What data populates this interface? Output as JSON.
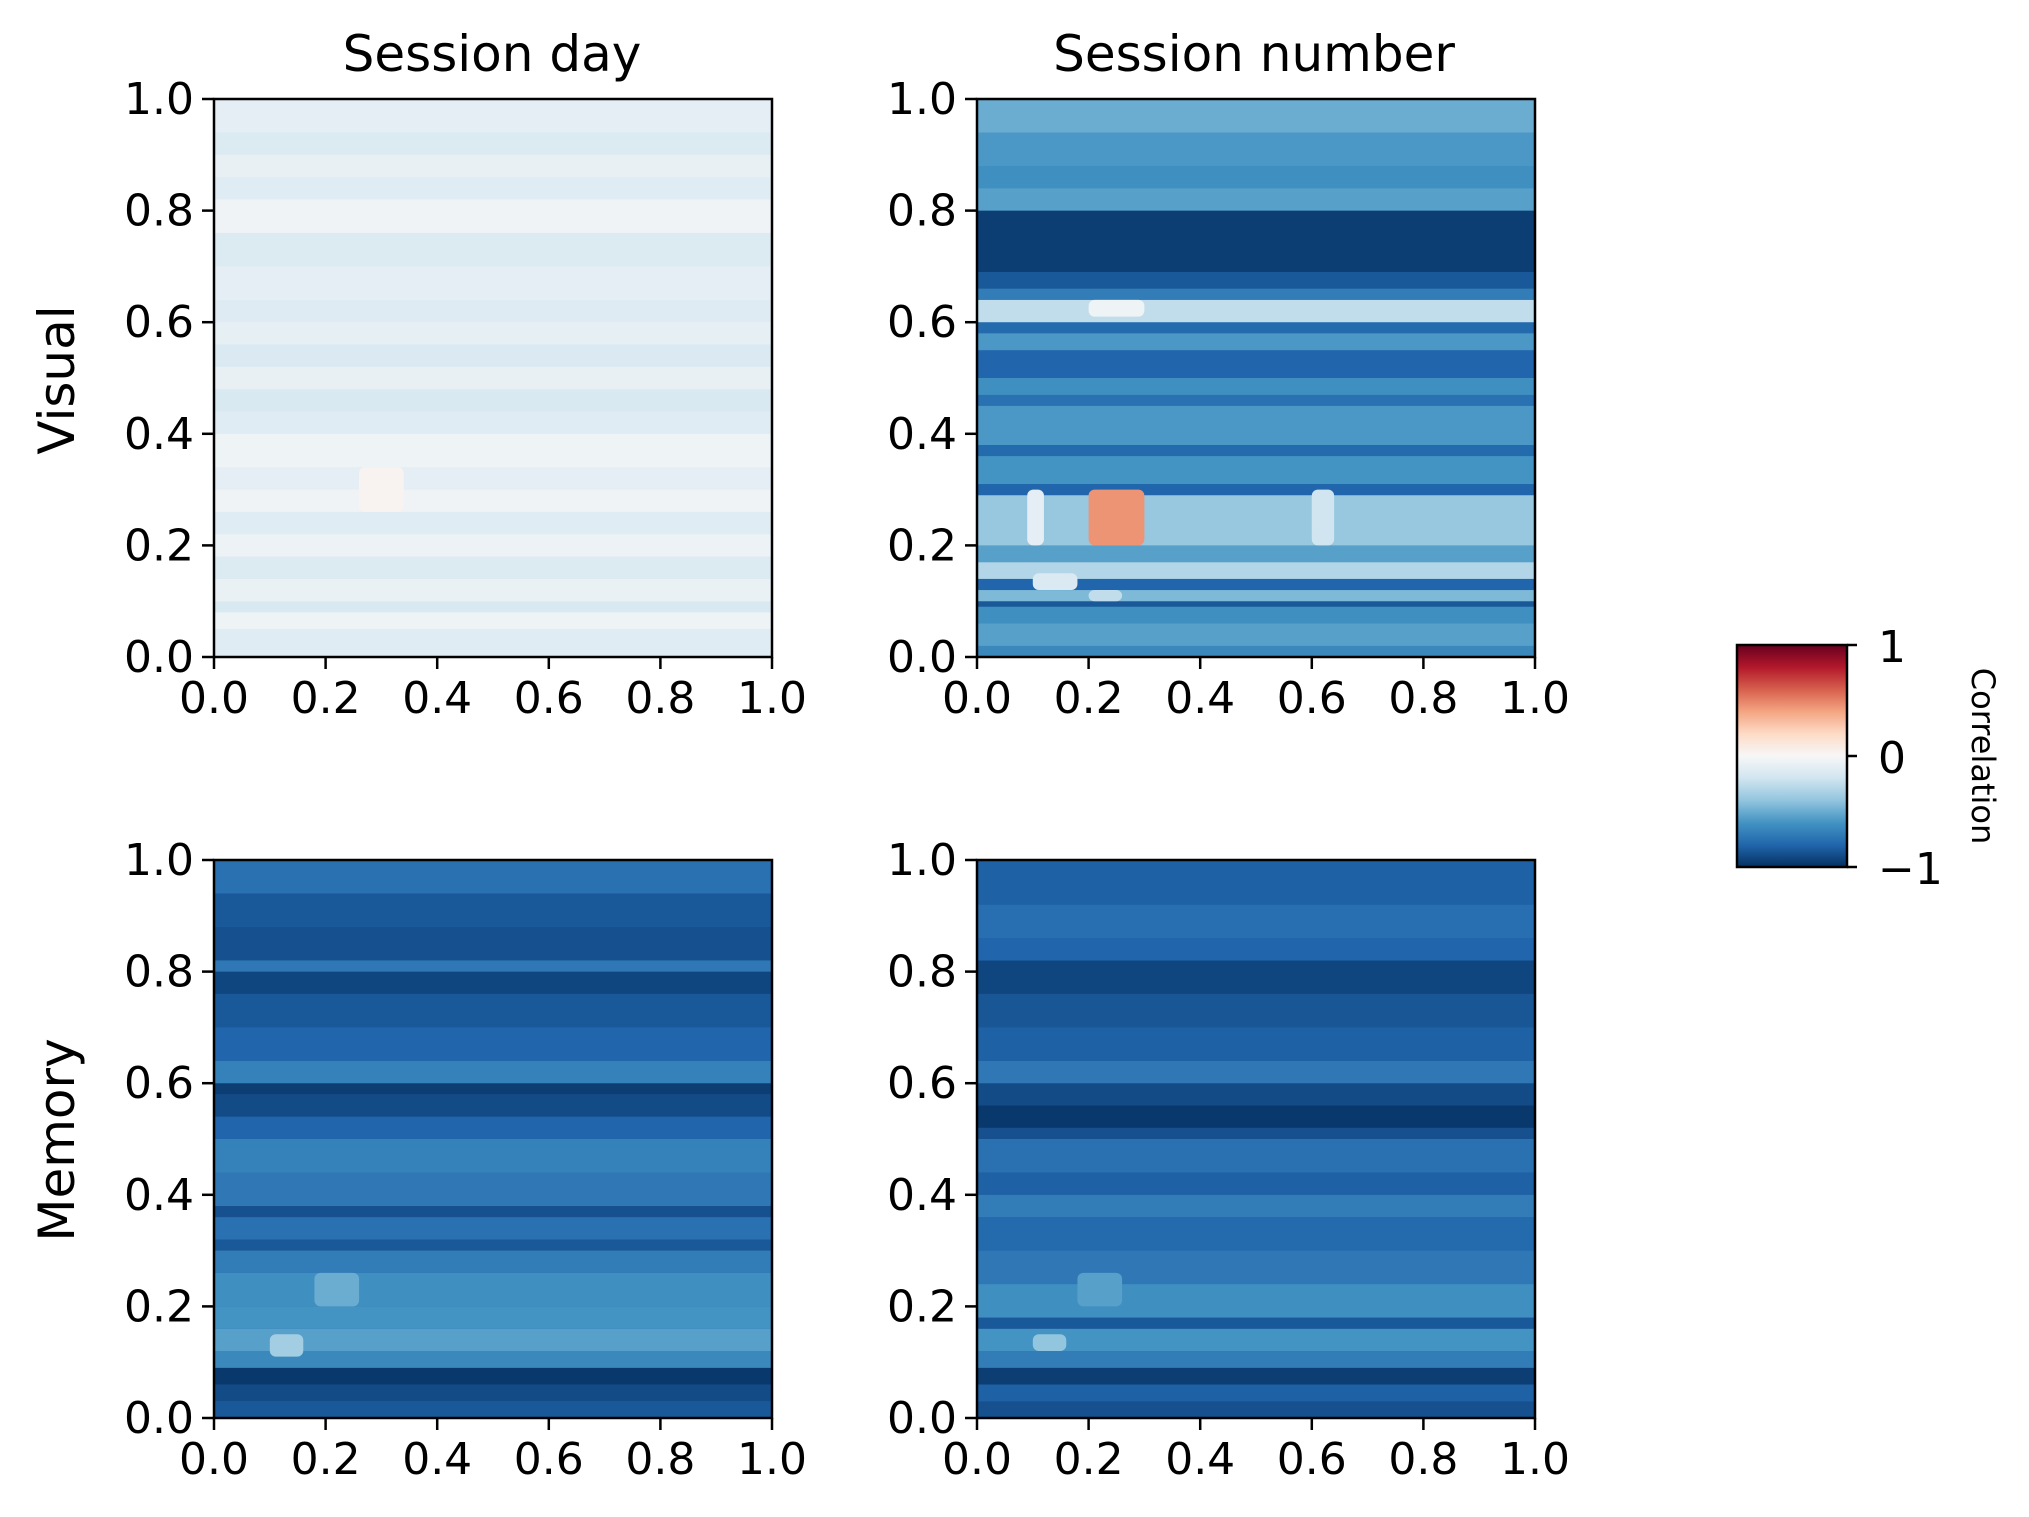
{
  "figure": {
    "column_titles": [
      "Session day",
      "Session number"
    ],
    "row_labels": [
      "Visual",
      "Memory"
    ]
  },
  "colorbar": {
    "label": "Correlation",
    "ticks": [
      {
        "value": 1,
        "label": "1"
      },
      {
        "value": 0,
        "label": "0"
      },
      {
        "value": -1,
        "label": "−1"
      }
    ],
    "range": [
      -1,
      1
    ],
    "colormap": "RdBu_r",
    "colors": [
      "#053061",
      "#2166ac",
      "#4393c3",
      "#92c5de",
      "#d1e5f0",
      "#f7f7f7",
      "#fddbc7",
      "#f4a582",
      "#d6604d",
      "#b2182b",
      "#67001f"
    ]
  },
  "chart_data": [
    {
      "type": "heatmap",
      "row": "Visual",
      "column": "Session day",
      "title": "Session day",
      "ylabel": "Visual",
      "xlim": [
        0,
        1
      ],
      "ylim": [
        0,
        1
      ],
      "xticks": [
        "0.0",
        "0.2",
        "0.4",
        "0.6",
        "0.8",
        "1.0"
      ],
      "yticks": [
        "0.0",
        "0.2",
        "0.4",
        "0.6",
        "0.8",
        "1.0"
      ],
      "base_correlation": -0.1,
      "bands": [
        {
          "y": [
            0.0,
            0.05
          ],
          "value": -0.12
        },
        {
          "y": [
            0.05,
            0.08
          ],
          "value": -0.05
        },
        {
          "y": [
            0.08,
            0.1
          ],
          "value": -0.16
        },
        {
          "y": [
            0.1,
            0.14
          ],
          "value": -0.07
        },
        {
          "y": [
            0.14,
            0.18
          ],
          "value": -0.14
        },
        {
          "y": [
            0.18,
            0.22
          ],
          "value": -0.06
        },
        {
          "y": [
            0.22,
            0.26
          ],
          "value": -0.12
        },
        {
          "y": [
            0.26,
            0.3
          ],
          "value": -0.04
        },
        {
          "y": [
            0.3,
            0.34
          ],
          "value": -0.1
        },
        {
          "y": [
            0.34,
            0.4
          ],
          "value": -0.05
        },
        {
          "y": [
            0.4,
            0.44
          ],
          "value": -0.12
        },
        {
          "y": [
            0.44,
            0.48
          ],
          "value": -0.16
        },
        {
          "y": [
            0.48,
            0.52
          ],
          "value": -0.08
        },
        {
          "y": [
            0.52,
            0.56
          ],
          "value": -0.15
        },
        {
          "y": [
            0.56,
            0.6
          ],
          "value": -0.09
        },
        {
          "y": [
            0.6,
            0.64
          ],
          "value": -0.13
        },
        {
          "y": [
            0.64,
            0.7
          ],
          "value": -0.1
        },
        {
          "y": [
            0.7,
            0.76
          ],
          "value": -0.14
        },
        {
          "y": [
            0.76,
            0.82
          ],
          "value": -0.04
        },
        {
          "y": [
            0.82,
            0.86
          ],
          "value": -0.12
        },
        {
          "y": [
            0.86,
            0.9
          ],
          "value": -0.08
        },
        {
          "y": [
            0.9,
            0.94
          ],
          "value": -0.14
        },
        {
          "y": [
            0.94,
            1.0
          ],
          "value": -0.1
        }
      ],
      "spots": [
        {
          "x": [
            0.26,
            0.34
          ],
          "y": [
            0.26,
            0.34
          ],
          "value": 0.03
        }
      ]
    },
    {
      "type": "heatmap",
      "row": "Visual",
      "column": "Session number",
      "title": "Session number",
      "ylabel": "",
      "xlim": [
        0,
        1
      ],
      "ylim": [
        0,
        1
      ],
      "xticks": [
        "0.0",
        "0.2",
        "0.4",
        "0.6",
        "0.8",
        "1.0"
      ],
      "yticks": [
        "0.0",
        "0.2",
        "0.4",
        "0.6",
        "0.8",
        "1.0"
      ],
      "base_correlation": -0.6,
      "bands": [
        {
          "y": [
            0.0,
            0.02
          ],
          "value": -0.65
        },
        {
          "y": [
            0.02,
            0.06
          ],
          "value": -0.55
        },
        {
          "y": [
            0.06,
            0.09
          ],
          "value": -0.62
        },
        {
          "y": [
            0.09,
            0.1
          ],
          "value": -0.85
        },
        {
          "y": [
            0.1,
            0.12
          ],
          "value": -0.45
        },
        {
          "y": [
            0.12,
            0.14
          ],
          "value": -0.8
        },
        {
          "y": [
            0.14,
            0.17
          ],
          "value": -0.3
        },
        {
          "y": [
            0.17,
            0.2
          ],
          "value": -0.55
        },
        {
          "y": [
            0.2,
            0.29
          ],
          "value": -0.38
        },
        {
          "y": [
            0.29,
            0.31
          ],
          "value": -0.8
        },
        {
          "y": [
            0.31,
            0.36
          ],
          "value": -0.6
        },
        {
          "y": [
            0.36,
            0.38
          ],
          "value": -0.78
        },
        {
          "y": [
            0.38,
            0.45
          ],
          "value": -0.58
        },
        {
          "y": [
            0.45,
            0.47
          ],
          "value": -0.75
        },
        {
          "y": [
            0.47,
            0.5
          ],
          "value": -0.62
        },
        {
          "y": [
            0.5,
            0.55
          ],
          "value": -0.8
        },
        {
          "y": [
            0.55,
            0.58
          ],
          "value": -0.58
        },
        {
          "y": [
            0.58,
            0.6
          ],
          "value": -0.78
        },
        {
          "y": [
            0.6,
            0.64
          ],
          "value": -0.25
        },
        {
          "y": [
            0.64,
            0.66
          ],
          "value": -0.7
        },
        {
          "y": [
            0.66,
            0.69
          ],
          "value": -0.85
        },
        {
          "y": [
            0.69,
            0.8
          ],
          "value": -0.95
        },
        {
          "y": [
            0.8,
            0.84
          ],
          "value": -0.55
        },
        {
          "y": [
            0.84,
            0.88
          ],
          "value": -0.62
        },
        {
          "y": [
            0.88,
            0.94
          ],
          "value": -0.58
        },
        {
          "y": [
            0.94,
            1.0
          ],
          "value": -0.5
        }
      ],
      "spots": [
        {
          "x": [
            0.2,
            0.3
          ],
          "y": [
            0.2,
            0.3
          ],
          "value": 0.45
        },
        {
          "x": [
            0.09,
            0.12
          ],
          "y": [
            0.2,
            0.3
          ],
          "value": -0.1
        },
        {
          "x": [
            0.6,
            0.64
          ],
          "y": [
            0.2,
            0.3
          ],
          "value": -0.2
        },
        {
          "x": [
            0.2,
            0.3
          ],
          "y": [
            0.61,
            0.64
          ],
          "value": -0.05
        },
        {
          "x": [
            0.1,
            0.18
          ],
          "y": [
            0.12,
            0.15
          ],
          "value": -0.15
        },
        {
          "x": [
            0.2,
            0.26
          ],
          "y": [
            0.1,
            0.12
          ],
          "value": -0.25
        }
      ]
    },
    {
      "type": "heatmap",
      "row": "Memory",
      "column": "Session day",
      "title": "",
      "ylabel": "Memory",
      "xlim": [
        0,
        1
      ],
      "ylim": [
        0,
        1
      ],
      "xticks": [
        "0.0",
        "0.2",
        "0.4",
        "0.6",
        "0.8",
        "1.0"
      ],
      "yticks": [
        "0.0",
        "0.2",
        "0.4",
        "0.6",
        "0.8",
        "1.0"
      ],
      "base_correlation": -0.78,
      "bands": [
        {
          "y": [
            0.0,
            0.03
          ],
          "value": -0.85
        },
        {
          "y": [
            0.03,
            0.06
          ],
          "value": -0.9
        },
        {
          "y": [
            0.06,
            0.09
          ],
          "value": -0.97
        },
        {
          "y": [
            0.09,
            0.12
          ],
          "value": -0.65
        },
        {
          "y": [
            0.12,
            0.16
          ],
          "value": -0.55
        },
        {
          "y": [
            0.16,
            0.2
          ],
          "value": -0.6
        },
        {
          "y": [
            0.2,
            0.26
          ],
          "value": -0.62
        },
        {
          "y": [
            0.26,
            0.3
          ],
          "value": -0.7
        },
        {
          "y": [
            0.3,
            0.32
          ],
          "value": -0.85
        },
        {
          "y": [
            0.32,
            0.36
          ],
          "value": -0.75
        },
        {
          "y": [
            0.36,
            0.38
          ],
          "value": -0.88
        },
        {
          "y": [
            0.38,
            0.44
          ],
          "value": -0.72
        },
        {
          "y": [
            0.44,
            0.5
          ],
          "value": -0.68
        },
        {
          "y": [
            0.5,
            0.54
          ],
          "value": -0.8
        },
        {
          "y": [
            0.54,
            0.58
          ],
          "value": -0.9
        },
        {
          "y": [
            0.58,
            0.6
          ],
          "value": -0.95
        },
        {
          "y": [
            0.6,
            0.64
          ],
          "value": -0.68
        },
        {
          "y": [
            0.64,
            0.7
          ],
          "value": -0.8
        },
        {
          "y": [
            0.7,
            0.76
          ],
          "value": -0.85
        },
        {
          "y": [
            0.76,
            0.8
          ],
          "value": -0.92
        },
        {
          "y": [
            0.8,
            0.82
          ],
          "value": -0.72
        },
        {
          "y": [
            0.82,
            0.88
          ],
          "value": -0.88
        },
        {
          "y": [
            0.88,
            0.94
          ],
          "value": -0.85
        },
        {
          "y": [
            0.94,
            1.0
          ],
          "value": -0.75
        }
      ],
      "spots": [
        {
          "x": [
            0.1,
            0.16
          ],
          "y": [
            0.11,
            0.15
          ],
          "value": -0.35
        },
        {
          "x": [
            0.18,
            0.26
          ],
          "y": [
            0.2,
            0.26
          ],
          "value": -0.5
        }
      ]
    },
    {
      "type": "heatmap",
      "row": "Memory",
      "column": "Session number",
      "title": "",
      "ylabel": "",
      "xlim": [
        0,
        1
      ],
      "ylim": [
        0,
        1
      ],
      "xticks": [
        "0.0",
        "0.2",
        "0.4",
        "0.6",
        "0.8",
        "1.0"
      ],
      "yticks": [
        "0.0",
        "0.2",
        "0.4",
        "0.6",
        "0.8",
        "1.0"
      ],
      "base_correlation": -0.8,
      "bands": [
        {
          "y": [
            0.0,
            0.03
          ],
          "value": -0.88
        },
        {
          "y": [
            0.03,
            0.06
          ],
          "value": -0.82
        },
        {
          "y": [
            0.06,
            0.09
          ],
          "value": -0.95
        },
        {
          "y": [
            0.09,
            0.12
          ],
          "value": -0.7
        },
        {
          "y": [
            0.12,
            0.16
          ],
          "value": -0.6
        },
        {
          "y": [
            0.16,
            0.18
          ],
          "value": -0.85
        },
        {
          "y": [
            0.18,
            0.24
          ],
          "value": -0.62
        },
        {
          "y": [
            0.24,
            0.3
          ],
          "value": -0.72
        },
        {
          "y": [
            0.3,
            0.36
          ],
          "value": -0.78
        },
        {
          "y": [
            0.36,
            0.4
          ],
          "value": -0.7
        },
        {
          "y": [
            0.4,
            0.44
          ],
          "value": -0.82
        },
        {
          "y": [
            0.44,
            0.5
          ],
          "value": -0.75
        },
        {
          "y": [
            0.5,
            0.52
          ],
          "value": -0.88
        },
        {
          "y": [
            0.52,
            0.56
          ],
          "value": -0.97
        },
        {
          "y": [
            0.56,
            0.6
          ],
          "value": -0.9
        },
        {
          "y": [
            0.6,
            0.64
          ],
          "value": -0.72
        },
        {
          "y": [
            0.64,
            0.7
          ],
          "value": -0.82
        },
        {
          "y": [
            0.7,
            0.76
          ],
          "value": -0.86
        },
        {
          "y": [
            0.76,
            0.82
          ],
          "value": -0.92
        },
        {
          "y": [
            0.82,
            0.86
          ],
          "value": -0.8
        },
        {
          "y": [
            0.86,
            0.92
          ],
          "value": -0.76
        },
        {
          "y": [
            0.92,
            1.0
          ],
          "value": -0.82
        }
      ],
      "spots": [
        {
          "x": [
            0.1,
            0.16
          ],
          "y": [
            0.12,
            0.15
          ],
          "value": -0.4
        },
        {
          "x": [
            0.18,
            0.26
          ],
          "y": [
            0.2,
            0.26
          ],
          "value": -0.55
        }
      ]
    }
  ]
}
